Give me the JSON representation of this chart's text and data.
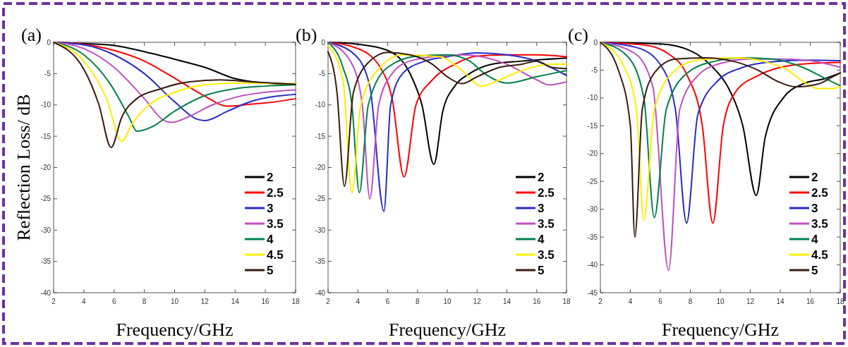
{
  "chart_data": [
    {
      "type": "line",
      "title": "(a)",
      "xlabel": "Frequency/GHz",
      "ylabel": "Reflection Loss/ dB",
      "xlim": [
        2,
        18
      ],
      "xticks": [
        2,
        4,
        6,
        8,
        10,
        12,
        14,
        16,
        18
      ],
      "ylim": [
        -40,
        0
      ],
      "yticks": [
        0,
        -5,
        -10,
        -15,
        -20,
        -25,
        -30,
        -35,
        -40
      ],
      "legend": "bottom right",
      "grid": false,
      "series": [
        {
          "name": "2",
          "color": "#000000",
          "x": [
            2,
            4,
            6,
            8,
            10,
            12,
            14,
            16,
            18
          ],
          "values": [
            0,
            -0.2,
            -0.5,
            -1.5,
            -2.7,
            -4,
            -5.8,
            -6.5,
            -6.7
          ]
        },
        {
          "name": "2.5",
          "color": "#ff0000",
          "x": [
            2,
            4,
            6,
            8,
            9.5,
            11,
            12,
            13.5,
            15,
            16,
            18
          ],
          "values": [
            0,
            -0.3,
            -1.3,
            -3,
            -5,
            -7.2,
            -8.6,
            -10.2,
            -9.9,
            -9.7,
            -9
          ]
        },
        {
          "name": "3",
          "color": "#2a2ac8",
          "x": [
            2,
            4,
            6,
            8,
            10,
            11.5,
            12,
            13.5,
            15,
            18
          ],
          "values": [
            0,
            -0.4,
            -2,
            -5,
            -9.5,
            -12.3,
            -12.5,
            -11,
            -9.5,
            -8.3
          ]
        },
        {
          "name": "3.5",
          "color": "#c050c0",
          "x": [
            2,
            4,
            6,
            8,
            9.3,
            9.8,
            11,
            12.5,
            14,
            18
          ],
          "values": [
            0,
            -1,
            -4,
            -9,
            -12.5,
            -12.8,
            -11.8,
            -10,
            -8.8,
            -7.6
          ]
        },
        {
          "name": "4",
          "color": "#00804a",
          "x": [
            2,
            4,
            5.7,
            7,
            7.5,
            8.5,
            10,
            12,
            14,
            16,
            18
          ],
          "values": [
            0,
            -2,
            -6.5,
            -12,
            -14.2,
            -13.5,
            -11,
            -8.5,
            -7.4,
            -7,
            -6.8
          ]
        },
        {
          "name": "4.5",
          "color": "#ffee00",
          "x": [
            2,
            4,
            5.5,
            6.5,
            7.2,
            8.3,
            10,
            12,
            14,
            18
          ],
          "values": [
            0,
            -3,
            -9,
            -15.8,
            -13,
            -10,
            -8,
            -6.8,
            -6.5,
            -6.6
          ]
        },
        {
          "name": "5",
          "color": "#3a1a10",
          "x": [
            2,
            4,
            5,
            5.8,
            6.5,
            7.5,
            9,
            11,
            13,
            15,
            18
          ],
          "values": [
            0,
            -4.3,
            -10,
            -16.8,
            -12,
            -9,
            -7.5,
            -6.3,
            -6,
            -6.3,
            -6.7
          ]
        }
      ]
    },
    {
      "type": "line",
      "title": "(b)",
      "xlabel": "Frequency/GHz",
      "xlim": [
        2,
        18
      ],
      "xticks": [
        2,
        4,
        6,
        8,
        10,
        12,
        14,
        16,
        18
      ],
      "ylim": [
        -40,
        0
      ],
      "yticks": [
        0,
        -5,
        -10,
        -15,
        -20,
        -25,
        -30,
        -35,
        -40
      ],
      "legend": "bottom right",
      "grid": false,
      "series": [
        {
          "name": "2",
          "color": "#000000",
          "x": [
            2,
            4,
            6,
            7.5,
            8.3,
            9.1,
            9.7,
            10.5,
            11.5,
            13,
            15,
            18
          ],
          "values": [
            0,
            -0.3,
            -1.3,
            -5,
            -10,
            -19.5,
            -11,
            -7,
            -5,
            -3.5,
            -3,
            -2.5
          ]
        },
        {
          "name": "2.5",
          "color": "#ff0000",
          "x": [
            2,
            4,
            5.5,
            6.3,
            7.1,
            7.9,
            9,
            10.5,
            12,
            14,
            16,
            18
          ],
          "values": [
            0,
            -1,
            -4,
            -9,
            -21.5,
            -10,
            -6,
            -3.5,
            -2.2,
            -2,
            -2,
            -2.3
          ]
        },
        {
          "name": "3",
          "color": "#2a2ac8",
          "x": [
            2,
            3.8,
            4.8,
            5.75,
            6.2,
            7,
            8.5,
            10,
            12,
            14,
            16,
            18
          ],
          "values": [
            0,
            -2,
            -7,
            -27,
            -10,
            -5,
            -3,
            -2.3,
            -1.7,
            -2,
            -3,
            -5.3
          ]
        },
        {
          "name": "3.5",
          "color": "#c050c0",
          "x": [
            2,
            3.5,
            4.3,
            4.8,
            5.4,
            6.3,
            7.5,
            9.5,
            11,
            14,
            16,
            16.8,
            18
          ],
          "values": [
            0,
            -3,
            -10,
            -25,
            -10,
            -5,
            -3,
            -2.2,
            -2,
            -3.5,
            -6,
            -6.8,
            -6.3
          ]
        },
        {
          "name": "4",
          "color": "#00804a",
          "x": [
            2,
            3,
            3.6,
            4.1,
            4.7,
            6,
            8,
            10,
            11.5,
            12.5,
            14,
            16,
            18
          ],
          "values": [
            0,
            -4,
            -10,
            -24,
            -10,
            -4,
            -2.2,
            -2,
            -3,
            -5,
            -6.5,
            -5.5,
            -4.5
          ]
        },
        {
          "name": "3.5",
          "color": "#ffee00",
          "x": [
            2,
            3,
            3.6,
            4.2,
            5.5,
            7,
            9.5,
            11,
            12.3,
            13.5,
            15,
            17,
            18
          ],
          "values": [
            -0.5,
            -6,
            -24,
            -10,
            -4,
            -2,
            -2.3,
            -4.5,
            -7,
            -6,
            -4.5,
            -3.5,
            -3.5
          ]
        },
        {
          "name": "5",
          "color": "#3a1a10",
          "x": [
            2,
            2.6,
            3.1,
            3.7,
            4.8,
            6,
            7.5,
            9,
            10,
            11,
            12,
            13.5,
            15,
            16,
            17,
            18
          ],
          "values": [
            -1.5,
            -8,
            -23,
            -8,
            -3,
            -1.6,
            -2,
            -3.5,
            -5.5,
            -6.6,
            -5.5,
            -4,
            -3.5,
            -3,
            -4,
            -4.2
          ]
        }
      ]
    },
    {
      "type": "line",
      "title": "(c)",
      "xlabel": "Frequency/GHz",
      "xlim": [
        2,
        18
      ],
      "xticks": [
        2,
        4,
        6,
        8,
        10,
        12,
        14,
        16,
        18
      ],
      "ylim": [
        -45,
        0
      ],
      "yticks": [
        0,
        -5,
        -10,
        -15,
        -20,
        -25,
        -30,
        -35,
        -40,
        -45
      ],
      "legend": "bottom right",
      "grid": false,
      "series": [
        {
          "name": "2",
          "color": "#000000",
          "x": [
            2,
            6,
            8,
            9.5,
            10.5,
            11.5,
            12.4,
            13,
            14.2,
            15.5,
            17,
            18
          ],
          "values": [
            0,
            -0.3,
            -1.5,
            -4.5,
            -8,
            -15,
            -27.5,
            -17,
            -10,
            -7.5,
            -6.5,
            -5.5
          ]
        },
        {
          "name": "2.5",
          "color": "#ff0000",
          "x": [
            2,
            5,
            6.5,
            7.8,
            8.8,
            9.5,
            10.2,
            11,
            12.5,
            14,
            16,
            18
          ],
          "values": [
            0,
            -0.5,
            -2,
            -6,
            -15,
            -32.5,
            -15,
            -9,
            -6,
            -4.5,
            -3.8,
            -3.6
          ]
        },
        {
          "name": "3",
          "color": "#2a2ac8",
          "x": [
            2,
            4.5,
            6,
            7,
            7.75,
            8.5,
            9.8,
            11.5,
            13.5,
            16,
            18
          ],
          "values": [
            0,
            -1,
            -4,
            -12,
            -32.5,
            -13,
            -7,
            -4.5,
            -3.5,
            -3.2,
            -3.3
          ]
        },
        {
          "name": "3.5",
          "color": "#c050c0",
          "x": [
            2,
            4.3,
            5.5,
            6.55,
            7.3,
            8.5,
            10,
            12,
            14,
            16,
            18
          ],
          "values": [
            0,
            -2,
            -8,
            -41,
            -12,
            -6,
            -3.8,
            -3,
            -3,
            -3.3,
            -4.5
          ]
        },
        {
          "name": "4",
          "color": "#00804a",
          "x": [
            2,
            3.8,
            4.9,
            5.6,
            6.4,
            7.8,
            9.5,
            11.5,
            13.5,
            15.5,
            17,
            18
          ],
          "values": [
            0,
            -2.5,
            -10,
            -31.5,
            -12,
            -5.5,
            -3.5,
            -2.8,
            -3,
            -4.5,
            -6.5,
            -7.8
          ]
        },
        {
          "name": "4.5",
          "color": "#ffee00",
          "x": [
            2,
            3.5,
            4.4,
            4.9,
            5.6,
            7,
            8.5,
            11,
            13,
            14.5,
            15.5,
            16.5,
            17.5,
            18
          ],
          "values": [
            0,
            -4,
            -12,
            -32,
            -12,
            -5,
            -3.2,
            -2.8,
            -3.5,
            -5,
            -7,
            -8.3,
            -8.3,
            -8
          ]
        },
        {
          "name": "5",
          "color": "#3a1a10",
          "x": [
            2,
            3.2,
            4,
            4.3,
            4.8,
            5.6,
            7,
            9,
            11,
            12.5,
            13.8,
            15,
            16.5,
            17.5,
            18
          ],
          "values": [
            0,
            -5,
            -15,
            -35,
            -12,
            -5.5,
            -3,
            -2.8,
            -3.5,
            -5,
            -7,
            -8,
            -7.5,
            -6.2,
            -5.5
          ]
        }
      ]
    }
  ]
}
